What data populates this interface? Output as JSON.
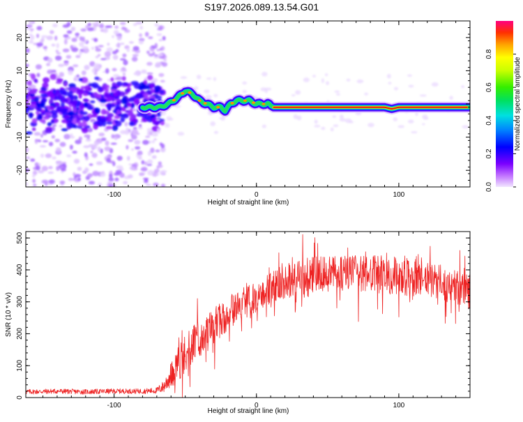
{
  "title": "S197.2026.089.13.54.G01",
  "chart_data": [
    {
      "type": "heatmap",
      "xlabel": "Height of straight line (km)",
      "ylabel": "Frequency (Hz)",
      "xlim": [
        -162,
        150
      ],
      "ylim": [
        -25,
        25
      ],
      "xticks": [
        -100,
        0,
        100
      ],
      "yticks": [
        -20,
        -10,
        0,
        10,
        20
      ],
      "xtick_labels": [
        "-100",
        "0",
        "100"
      ],
      "ytick_labels": [
        "-20",
        "-10",
        "0",
        "10",
        "20"
      ],
      "colorbar": {
        "label": "Normalized spectral amplitude",
        "range": [
          0,
          1
        ],
        "ticks": [
          0.0,
          0.2,
          0.4,
          0.6,
          0.8
        ],
        "tick_labels": [
          "0.0",
          "0.2",
          "0.4",
          "0.6",
          "0.8"
        ]
      },
      "ridge": {
        "x": [
          -162,
          -140,
          -120,
          -100,
          -85,
          -75,
          -68,
          -62,
          -55,
          -50,
          -45,
          -40,
          -35,
          -30,
          -25,
          -22,
          -18,
          -14,
          -10,
          -5,
          0,
          5,
          8,
          12,
          20,
          40,
          60,
          80,
          90,
          95,
          100,
          110,
          120,
          130,
          140,
          150
        ],
        "frequency_hz": [
          0,
          1,
          0,
          2,
          -1,
          -1,
          -1,
          0,
          2,
          4,
          3,
          1,
          0,
          -1,
          -1,
          -2,
          0,
          1,
          1,
          1,
          0,
          0,
          0,
          -1,
          -1,
          -1,
          -1,
          -1,
          -1,
          -1.5,
          -1,
          -1,
          -1,
          -1,
          -1,
          -1
        ],
        "amplitude": [
          0.2,
          0.2,
          0.2,
          0.2,
          0.2,
          0.3,
          0.5,
          0.6,
          0.7,
          0.7,
          0.7,
          0.7,
          0.7,
          0.7,
          0.7,
          0.8,
          0.8,
          0.8,
          0.8,
          0.8,
          0.8,
          0.8,
          0.8,
          1,
          1,
          1,
          1,
          1,
          1,
          1,
          1,
          1,
          1,
          1,
          1,
          1
        ]
      },
      "noise_extent_km": [
        -162,
        -72
      ],
      "noise_frequency_range_hz": [
        -25,
        25
      ]
    },
    {
      "type": "line",
      "xlabel": "Height of straight line (km)",
      "ylabel": "SNR (10 * v/v)",
      "xlim": [
        -162,
        150
      ],
      "ylim": [
        0,
        520
      ],
      "xticks": [
        -100,
        0,
        100
      ],
      "yticks": [
        0,
        100,
        200,
        300,
        400,
        500
      ],
      "xtick_labels": [
        "-100",
        "0",
        "100"
      ],
      "ytick_labels": [
        "0",
        "100",
        "200",
        "300",
        "400",
        "500"
      ],
      "series": [
        {
          "name": "SNR",
          "color": "#ee2222",
          "envelope_x": [
            -162,
            -140,
            -120,
            -100,
            -80,
            -70,
            -65,
            -60,
            -55,
            -50,
            -45,
            -40,
            -35,
            -30,
            -25,
            -20,
            -15,
            -10,
            -5,
            0,
            5,
            10,
            20,
            30,
            40,
            50,
            60,
            70,
            80,
            90,
            100,
            110,
            120,
            130,
            140,
            150
          ],
          "envelope_y": [
            18,
            20,
            18,
            20,
            20,
            22,
            35,
            70,
            110,
            135,
            165,
            185,
            205,
            225,
            245,
            265,
            280,
            295,
            305,
            315,
            330,
            345,
            365,
            380,
            385,
            390,
            390,
            385,
            385,
            385,
            380,
            375,
            370,
            360,
            345,
            335
          ],
          "noise_amplitude": [
            8,
            8,
            8,
            8,
            8,
            10,
            20,
            40,
            60,
            60,
            60,
            60,
            60,
            55,
            55,
            55,
            50,
            50,
            50,
            50,
            50,
            50,
            55,
            60,
            60,
            60,
            60,
            60,
            60,
            60,
            60,
            60,
            55,
            55,
            55,
            60
          ]
        }
      ]
    }
  ]
}
